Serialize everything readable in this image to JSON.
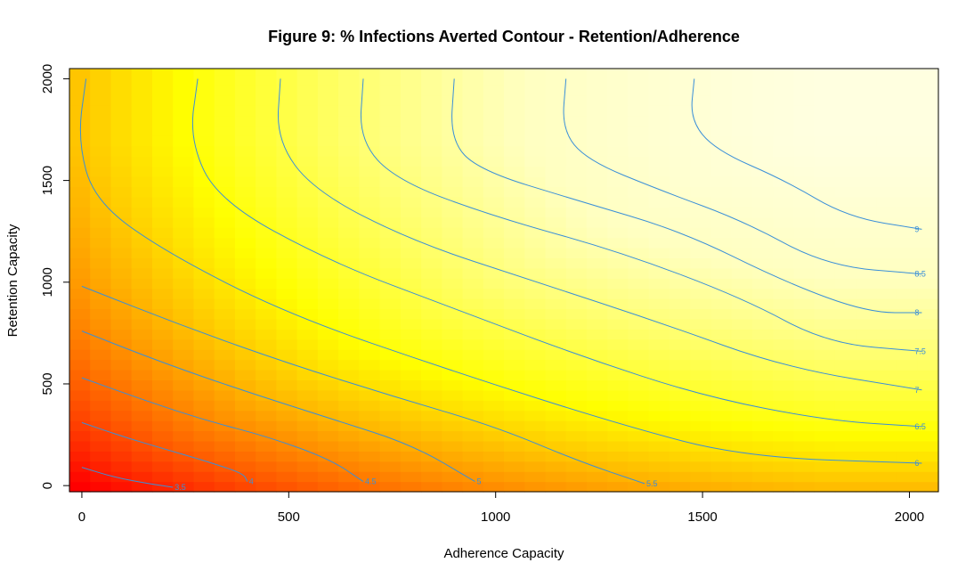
{
  "chart_data": {
    "type": "heatmap",
    "title": "Figure 9: % Infections Averted Contour - Retention/Adherence",
    "xlabel": "Adherence Capacity",
    "ylabel": "Retention Capacity",
    "xlim": [
      -30,
      2070
    ],
    "ylim": [
      -30,
      2050
    ],
    "x_ticks": [
      0,
      500,
      1000,
      1500,
      2000
    ],
    "y_ticks": [
      0,
      500,
      1000,
      1500,
      2000
    ],
    "x_tick_labels": [
      "0",
      "500",
      "1000",
      "1500",
      "2000"
    ],
    "y_tick_labels": [
      "0",
      "500",
      "1000",
      "1500",
      "2000"
    ],
    "color_scale": [
      "#ff0000",
      "#ff8000",
      "#ffff00",
      "#ffffc0",
      "#ffffff"
    ],
    "value_range": [
      3.3,
      9.3
    ],
    "grid": false,
    "contour_color": "#3a8fd8",
    "contours": [
      {
        "label": "3.5",
        "points": [
          [
            0,
            90
          ],
          [
            80,
            40
          ],
          [
            160,
            10
          ],
          [
            220,
            -8
          ]
        ]
      },
      {
        "label": "4",
        "points": [
          [
            0,
            310
          ],
          [
            100,
            240
          ],
          [
            200,
            180
          ],
          [
            300,
            120
          ],
          [
            390,
            60
          ],
          [
            400,
            20
          ]
        ]
      },
      {
        "label": "4.5",
        "points": [
          [
            0,
            530
          ],
          [
            150,
            420
          ],
          [
            300,
            320
          ],
          [
            450,
            240
          ],
          [
            600,
            130
          ],
          [
            680,
            20
          ]
        ]
      },
      {
        "label": "5",
        "points": [
          [
            0,
            760
          ],
          [
            200,
            600
          ],
          [
            400,
            460
          ],
          [
            600,
            330
          ],
          [
            800,
            200
          ],
          [
            950,
            20
          ]
        ]
      },
      {
        "label": "5.5",
        "points": [
          [
            0,
            980
          ],
          [
            250,
            780
          ],
          [
            500,
            600
          ],
          [
            750,
            440
          ],
          [
            1000,
            290
          ],
          [
            1200,
            120
          ],
          [
            1360,
            10
          ]
        ]
      },
      {
        "label": "6",
        "points": [
          [
            10,
            2000
          ],
          [
            -10,
            1700
          ],
          [
            30,
            1400
          ],
          [
            200,
            1150
          ],
          [
            500,
            840
          ],
          [
            900,
            560
          ],
          [
            1300,
            300
          ],
          [
            1600,
            140
          ],
          [
            2030,
            110
          ]
        ]
      },
      {
        "label": "6.5",
        "points": [
          [
            280,
            2000
          ],
          [
            260,
            1700
          ],
          [
            330,
            1400
          ],
          [
            600,
            1100
          ],
          [
            900,
            870
          ],
          [
            1200,
            640
          ],
          [
            1500,
            440
          ],
          [
            1800,
            320
          ],
          [
            2030,
            290
          ]
        ]
      },
      {
        "label": "7",
        "points": [
          [
            480,
            2000
          ],
          [
            470,
            1700
          ],
          [
            560,
            1450
          ],
          [
            800,
            1200
          ],
          [
            1100,
            1000
          ],
          [
            1400,
            800
          ],
          [
            1700,
            580
          ],
          [
            2030,
            470
          ]
        ]
      },
      {
        "label": "7.5",
        "points": [
          [
            680,
            2000
          ],
          [
            670,
            1700
          ],
          [
            760,
            1500
          ],
          [
            1000,
            1320
          ],
          [
            1300,
            1150
          ],
          [
            1600,
            920
          ],
          [
            1800,
            700
          ],
          [
            2030,
            660
          ]
        ]
      },
      {
        "label": "8",
        "points": [
          [
            900,
            2000
          ],
          [
            890,
            1700
          ],
          [
            960,
            1550
          ],
          [
            1200,
            1400
          ],
          [
            1450,
            1250
          ],
          [
            1700,
            1000
          ],
          [
            1900,
            850
          ],
          [
            2030,
            850
          ]
        ]
      },
      {
        "label": "8.5",
        "points": [
          [
            1170,
            2000
          ],
          [
            1160,
            1750
          ],
          [
            1220,
            1600
          ],
          [
            1400,
            1450
          ],
          [
            1600,
            1300
          ],
          [
            1800,
            1080
          ],
          [
            2030,
            1040
          ]
        ]
      },
      {
        "label": "9",
        "points": [
          [
            1480,
            2000
          ],
          [
            1470,
            1800
          ],
          [
            1530,
            1650
          ],
          [
            1700,
            1500
          ],
          [
            1850,
            1320
          ],
          [
            2030,
            1260
          ]
        ]
      }
    ]
  }
}
